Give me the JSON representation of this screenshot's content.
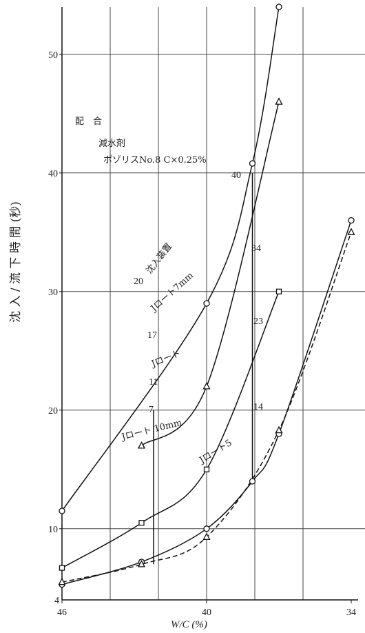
{
  "chart_data": {
    "type": "line",
    "xlabel": "W/C (%)",
    "ylabel": "沈 入 / 流 下 時 間 (秒)",
    "x_ticks": [
      "46",
      "40",
      "34"
    ],
    "y_ticks": [
      "10",
      "20",
      "30",
      "40",
      "50"
    ],
    "y_bottom_label": "4",
    "xlim": [
      46,
      34
    ],
    "ylim": [
      4,
      54
    ],
    "mix_note": {
      "title": "配　合",
      "line1": "減水剤",
      "line2": "ポゾリスNo.8 C×0.25%"
    },
    "series": [
      {
        "name": "沈入装置",
        "marker": "circle",
        "style": "solid",
        "x": [
          46,
          40,
          38.1,
          37
        ],
        "y": [
          11.5,
          29,
          40.8,
          54
        ]
      },
      {
        "name": "Jロート7mm",
        "marker": "triangle",
        "style": "solid",
        "x": [
          42.7,
          40,
          37
        ],
        "y": [
          17,
          22,
          46
        ]
      },
      {
        "name": "Jロート",
        "marker": "square",
        "style": "solid",
        "x": [
          46,
          42.7,
          40,
          37
        ],
        "y": [
          6.7,
          10.5,
          15,
          30
        ]
      },
      {
        "name": "Jロート5",
        "marker": "circle",
        "style": "solid",
        "x": [
          46,
          42.7,
          40,
          38.1,
          37,
          34
        ],
        "y": [
          5.3,
          7.2,
          10,
          14,
          18,
          36
        ]
      },
      {
        "name": "Jロート 10mm",
        "marker": "triangle",
        "style": "dashed",
        "x": [
          46,
          42.7,
          40,
          37,
          34
        ],
        "y": [
          5.5,
          7,
          9.3,
          18.3,
          35
        ]
      }
    ],
    "vertical_links": [
      {
        "x": 42.2,
        "top": 20,
        "bottom": 7,
        "labels": [
          "20",
          "17",
          "11",
          "7"
        ]
      },
      {
        "x": 38.1,
        "top": 40,
        "bottom": 14,
        "labels": [
          "40",
          "34",
          "23",
          "14"
        ]
      }
    ]
  }
}
